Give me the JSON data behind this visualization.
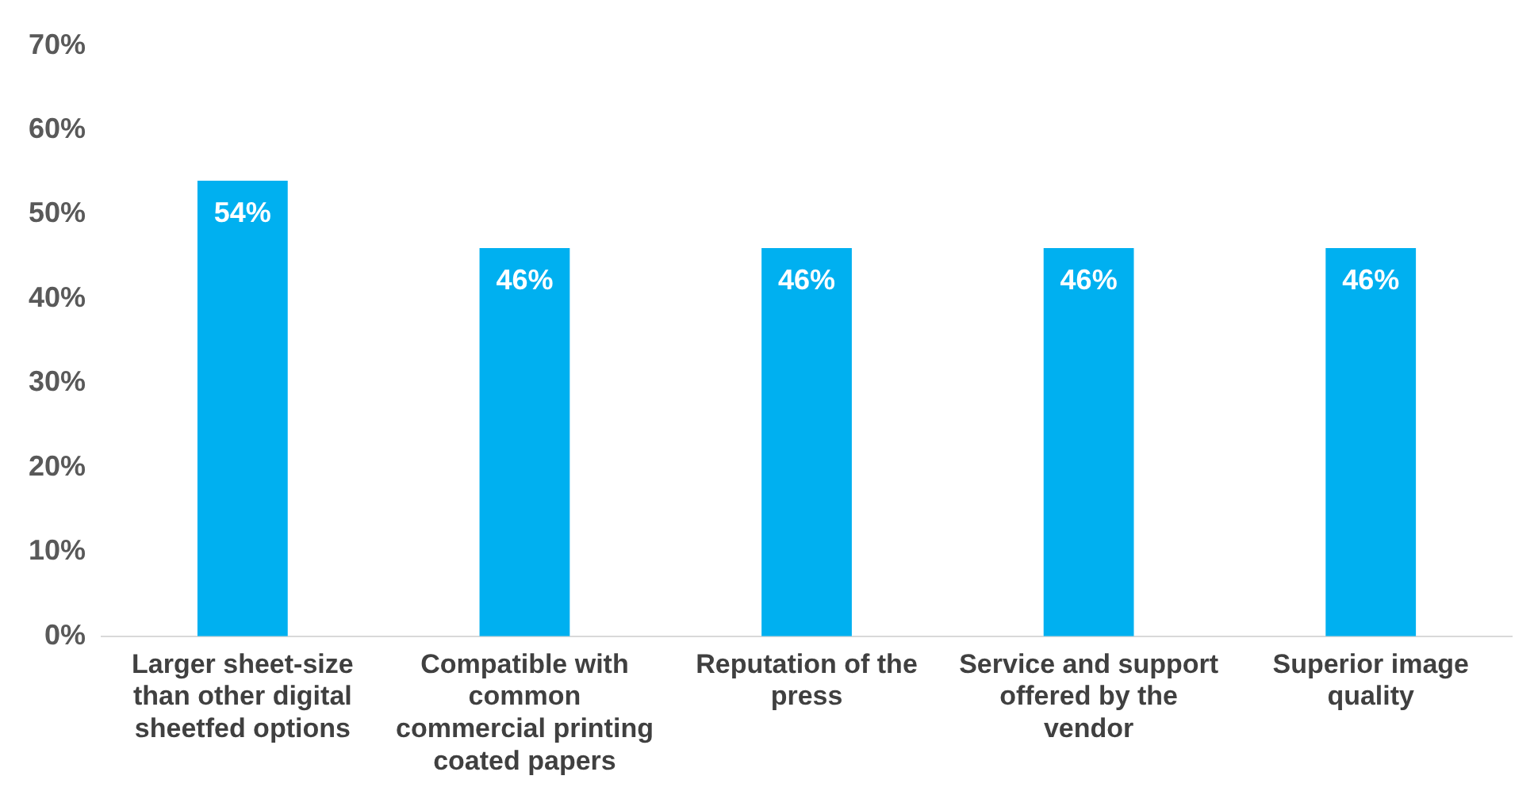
{
  "chart_data": {
    "type": "bar",
    "categories": [
      "Larger sheet-size than other digital sheetfed options",
      "Compatible with common commercial printing coated papers",
      "Reputation of the press",
      "Service and support offered by the vendor",
      "Superior image quality"
    ],
    "values": [
      54,
      46,
      46,
      46,
      46
    ],
    "color": "#00b0f0",
    "ylim": [
      0,
      70
    ],
    "yticks": [
      {
        "value": 0,
        "label": "0%"
      },
      {
        "value": 10,
        "label": "10%"
      },
      {
        "value": 20,
        "label": "20%"
      },
      {
        "value": 30,
        "label": "30%"
      },
      {
        "value": 40,
        "label": "40%"
      },
      {
        "value": 50,
        "label": "50%"
      },
      {
        "value": 60,
        "label": "60%"
      },
      {
        "value": 70,
        "label": "70%"
      }
    ],
    "value_labels": [
      "54%",
      "46%",
      "46%",
      "46%",
      "46%"
    ],
    "grid": false,
    "legend": false
  }
}
